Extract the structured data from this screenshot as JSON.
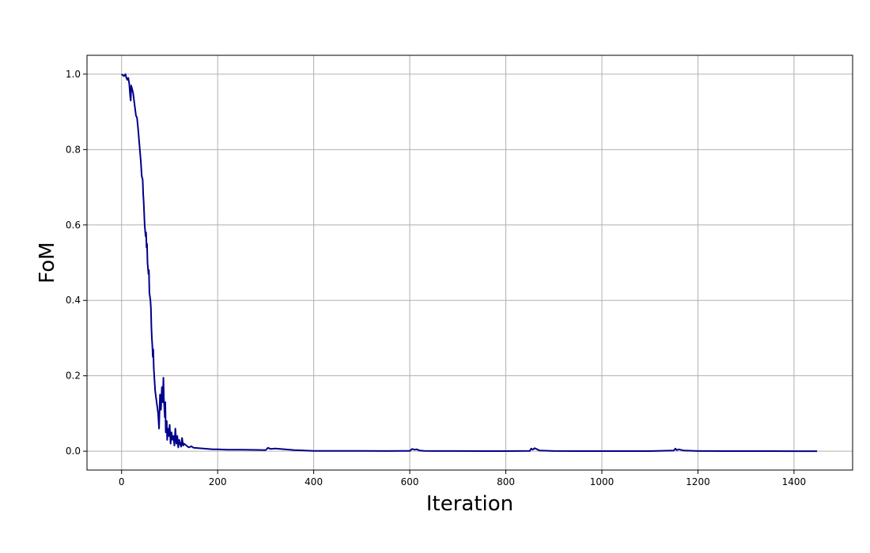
{
  "chart_data": {
    "type": "line",
    "title": "",
    "xlabel": "Iteration",
    "ylabel": "FoM",
    "xlim": [
      -72,
      1522
    ],
    "ylim": [
      -0.05,
      1.05
    ],
    "xticks": [
      0,
      200,
      400,
      600,
      800,
      1000,
      1200,
      1400
    ],
    "yticks": [
      0.0,
      0.2,
      0.4,
      0.6,
      0.8,
      1.0
    ],
    "xtick_labels": [
      "0",
      "200",
      "400",
      "600",
      "800",
      "1000",
      "1200",
      "1400"
    ],
    "ytick_labels": [
      "0.0",
      "0.2",
      "0.4",
      "0.6",
      "0.8",
      "1.0"
    ],
    "grid": true,
    "line_color": "#00008b",
    "series": [
      {
        "x": [
          0,
          5,
          8,
          10,
          12,
          14,
          16,
          18,
          19,
          20,
          21,
          22,
          24,
          26,
          28,
          30,
          32,
          34,
          36,
          38,
          40,
          42,
          44,
          45,
          46,
          48,
          50,
          51,
          52,
          53,
          54,
          56,
          57,
          58,
          60,
          61,
          62,
          63,
          64,
          65,
          66,
          67,
          68,
          69,
          70,
          72,
          74,
          76,
          78,
          80,
          82,
          84,
          86,
          87,
          88,
          90,
          91,
          92,
          94,
          95,
          96,
          98,
          100,
          102,
          104,
          106,
          108,
          110,
          112,
          114,
          116,
          118,
          120,
          122,
          124,
          126,
          128,
          130,
          135,
          140,
          145,
          150,
          160,
          170,
          180,
          190,
          200,
          220,
          250,
          280,
          300,
          305,
          310,
          320,
          340,
          360,
          380,
          400,
          450,
          500,
          550,
          600,
          605,
          610,
          615,
          620,
          630,
          650,
          700,
          750,
          800,
          850,
          853,
          856,
          860,
          870,
          900,
          950,
          1000,
          1050,
          1100,
          1150,
          1153,
          1156,
          1160,
          1170,
          1200,
          1250,
          1300,
          1350,
          1400,
          1448
        ],
        "values": [
          1.0,
          0.995,
          1.0,
          0.99,
          0.985,
          0.99,
          0.975,
          0.94,
          0.93,
          0.97,
          0.965,
          0.96,
          0.95,
          0.93,
          0.91,
          0.89,
          0.885,
          0.86,
          0.83,
          0.8,
          0.77,
          0.73,
          0.72,
          0.68,
          0.66,
          0.6,
          0.57,
          0.58,
          0.54,
          0.55,
          0.5,
          0.47,
          0.48,
          0.42,
          0.4,
          0.38,
          0.33,
          0.3,
          0.28,
          0.25,
          0.27,
          0.22,
          0.2,
          0.18,
          0.16,
          0.14,
          0.12,
          0.1,
          0.06,
          0.15,
          0.11,
          0.17,
          0.13,
          0.195,
          0.14,
          0.09,
          0.13,
          0.05,
          0.08,
          0.03,
          0.06,
          0.04,
          0.07,
          0.02,
          0.05,
          0.03,
          0.04,
          0.015,
          0.06,
          0.02,
          0.04,
          0.01,
          0.03,
          0.02,
          0.012,
          0.035,
          0.015,
          0.02,
          0.015,
          0.01,
          0.013,
          0.009,
          0.008,
          0.007,
          0.006,
          0.005,
          0.005,
          0.004,
          0.004,
          0.0035,
          0.003,
          0.009,
          0.006,
          0.007,
          0.005,
          0.003,
          0.002,
          0.001,
          0.001,
          0.0008,
          0.0005,
          0.001,
          0.006,
          0.004,
          0.005,
          0.002,
          0.001,
          0.0005,
          0.0004,
          0.0003,
          0.0003,
          0.001,
          0.007,
          0.004,
          0.008,
          0.002,
          0.0005,
          0.0003,
          0.0002,
          0.0002,
          0.0002,
          0.002,
          0.007,
          0.003,
          0.005,
          0.002,
          0.0005,
          0.0002,
          0.0002,
          0.0002,
          0.0001,
          0.0001
        ]
      }
    ]
  }
}
